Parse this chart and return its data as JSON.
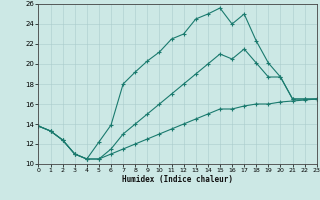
{
  "xlabel": "Humidex (Indice chaleur)",
  "xlim": [
    0,
    23
  ],
  "ylim": [
    10,
    26
  ],
  "xticks": [
    0,
    1,
    2,
    3,
    4,
    5,
    6,
    7,
    8,
    9,
    10,
    11,
    12,
    13,
    14,
    15,
    16,
    17,
    18,
    19,
    20,
    21,
    22,
    23
  ],
  "yticks": [
    10,
    12,
    14,
    16,
    18,
    20,
    22,
    24,
    26
  ],
  "bg_color": "#cce8e5",
  "grid_color": "#aacccc",
  "line_color": "#1a7a6e",
  "line1_x": [
    0,
    1,
    2,
    3,
    4,
    5,
    6,
    7,
    8,
    9,
    10,
    11,
    12,
    13,
    14,
    15,
    16,
    17,
    18,
    19,
    20,
    21,
    22,
    23
  ],
  "line1_y": [
    13.8,
    13.3,
    12.4,
    11.0,
    10.5,
    12.2,
    13.9,
    18.0,
    19.2,
    20.3,
    21.2,
    22.5,
    23.0,
    24.5,
    25.0,
    25.6,
    24.0,
    25.0,
    22.3,
    20.1,
    18.7,
    16.5,
    16.5,
    16.5
  ],
  "line2_x": [
    0,
    1,
    2,
    3,
    4,
    5,
    6,
    7,
    8,
    9,
    10,
    11,
    12,
    13,
    14,
    15,
    16,
    17,
    18,
    19,
    20,
    21,
    22,
    23
  ],
  "line2_y": [
    13.8,
    13.3,
    12.4,
    11.0,
    10.5,
    10.5,
    11.5,
    13.0,
    14.0,
    15.0,
    16.0,
    17.0,
    18.0,
    19.0,
    20.0,
    21.0,
    20.5,
    21.5,
    20.1,
    18.7,
    18.7,
    16.5,
    16.5,
    16.5
  ],
  "line3_x": [
    0,
    1,
    2,
    3,
    4,
    5,
    6,
    7,
    8,
    9,
    10,
    11,
    12,
    13,
    14,
    15,
    16,
    17,
    18,
    19,
    20,
    21,
    22,
    23
  ],
  "line3_y": [
    13.8,
    13.3,
    12.4,
    11.0,
    10.5,
    10.5,
    11.0,
    11.5,
    12.0,
    12.5,
    13.0,
    13.5,
    14.0,
    14.5,
    15.0,
    15.5,
    15.5,
    15.8,
    16.0,
    16.0,
    16.2,
    16.3,
    16.4,
    16.5
  ]
}
